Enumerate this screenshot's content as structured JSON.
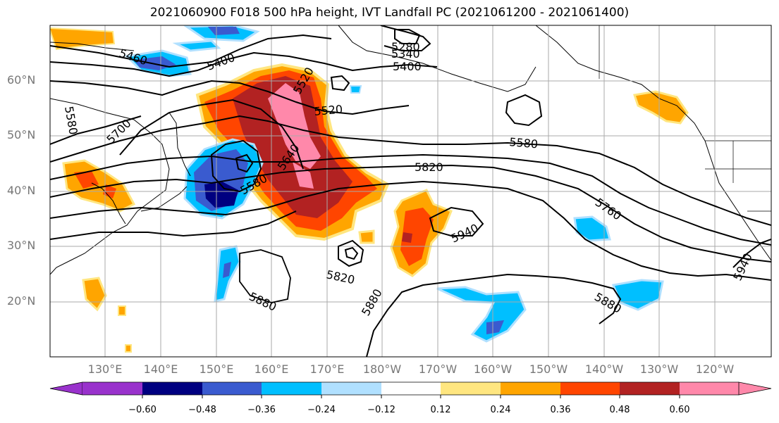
{
  "title": "2021060900 F018 500 hPa height, IVT Landfall PC (2021061200 - 2021061400)",
  "lat_labels": [
    "60°N",
    "50°N",
    "40°N",
    "30°N",
    "20°N"
  ],
  "lon_labels": [
    "130°E",
    "140°E",
    "150°E",
    "160°E",
    "170°E",
    "180°W",
    "170°W",
    "160°W",
    "150°W",
    "140°W",
    "130°W",
    "120°W"
  ],
  "contour_labels": [
    "5460",
    "5400",
    "5280",
    "5340",
    "5400",
    "5520",
    "5580",
    "5700",
    "5640",
    "5580",
    "5820",
    "5580",
    "5760",
    "5940",
    "5820",
    "5880",
    "5880",
    "5880",
    "5940",
    "5520"
  ],
  "colorbar": {
    "ticks": [
      "−0.60",
      "−0.48",
      "−0.36",
      "−0.24",
      "−0.12",
      "0.12",
      "0.24",
      "0.36",
      "0.48",
      "0.60"
    ],
    "colors": [
      "#9932cc",
      "#000080",
      "#3a5bcf",
      "#00bfff",
      "#b0e0ff",
      "#ffffff",
      "#ffe680",
      "#ffa500",
      "#ff4500",
      "#b22222",
      "#ff88aa"
    ]
  }
}
